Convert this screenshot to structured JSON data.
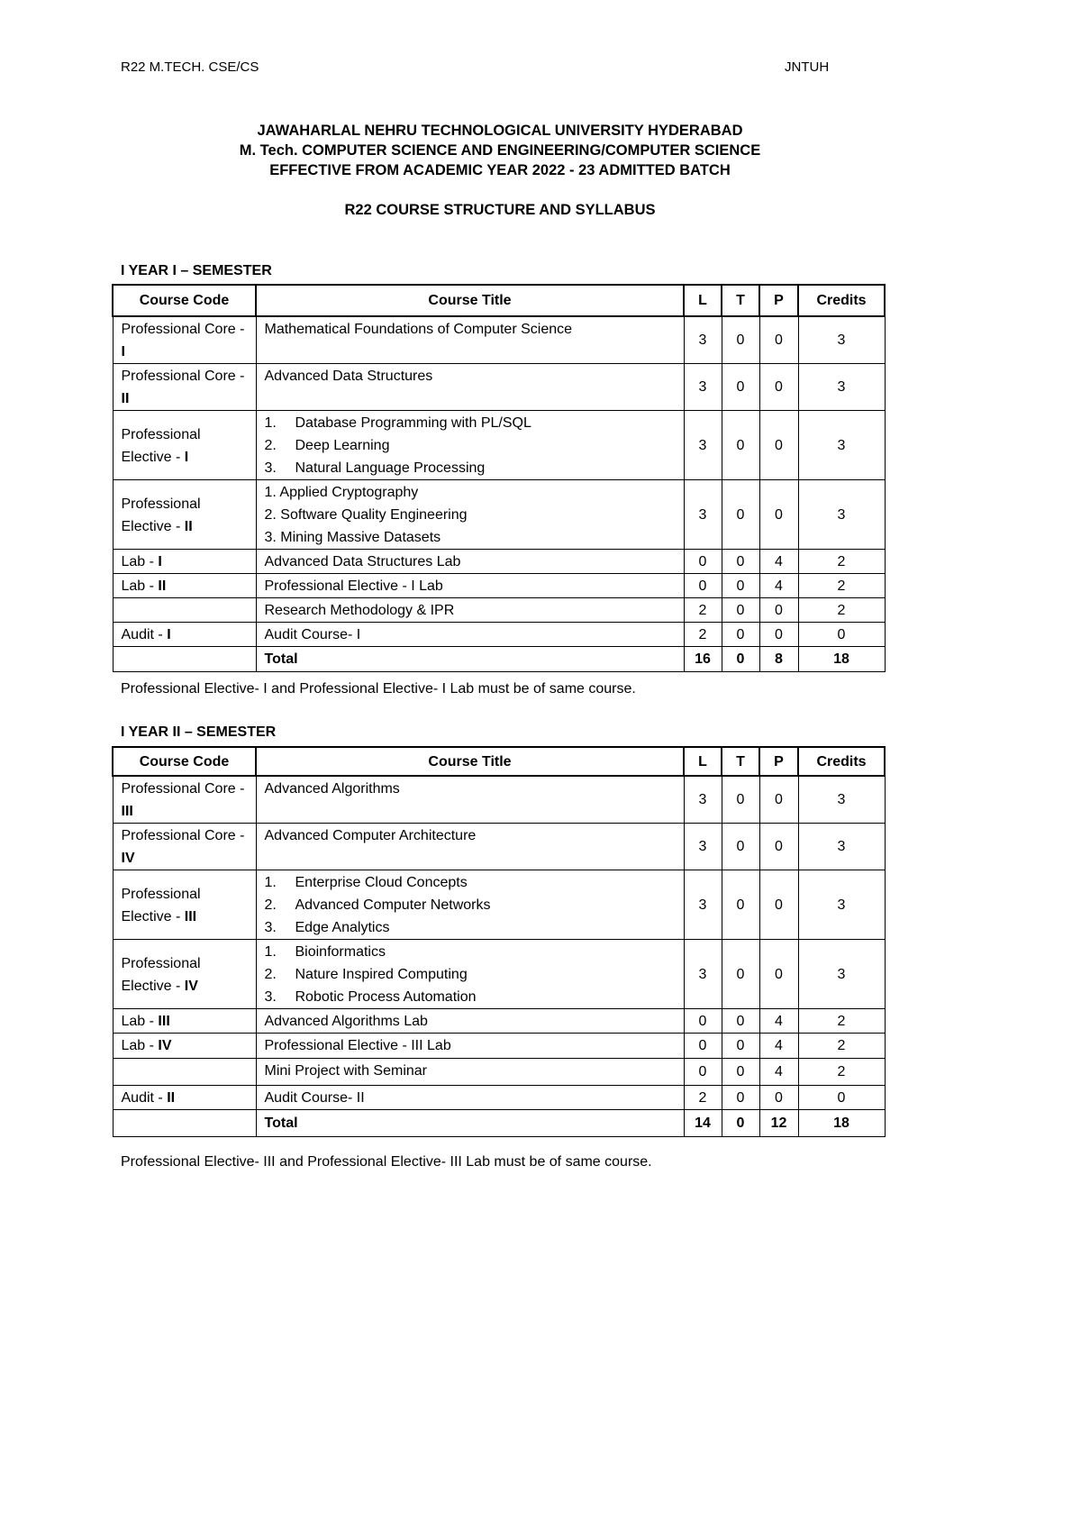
{
  "header": {
    "left": "R22 M.TECH. CSE/CS",
    "right": "JNTUH"
  },
  "titles": [
    "JAWAHARLAL NEHRU TECHNOLOGICAL UNIVERSITY HYDERABAD",
    "M. Tech. COMPUTER SCIENCE AND ENGINEERING/COMPUTER SCIENCE",
    "EFFECTIVE FROM ACADEMIC YEAR 2022 - 23 ADMITTED BATCH",
    "R22 COURSE STRUCTURE AND SYLLABUS"
  ],
  "columns": [
    "Course Code",
    "Course Title",
    "L",
    "T",
    "P",
    "Credits"
  ],
  "semesters": [
    {
      "heading": "I YEAR I – SEMESTER",
      "rows": [
        {
          "code": "Professional Core - ",
          "num": "I",
          "titles": [
            "Mathematical Foundations of Computer Science"
          ],
          "L": "3",
          "T": "0",
          "P": "0",
          "C": "3"
        },
        {
          "code": "Professional Core - ",
          "num": "II",
          "titles": [
            "Advanced Data Structures"
          ],
          "L": "3",
          "T": "0",
          "P": "0",
          "C": "3"
        },
        {
          "code": "Professional Elective - ",
          "num": "I",
          "list": "tab",
          "titles": [
            "Database Programming with PL/SQL",
            "Deep Learning",
            "Natural Language Processing"
          ],
          "L": "3",
          "T": "0",
          "P": "0",
          "C": "3"
        },
        {
          "code": "Professional Elective - ",
          "num": "II",
          "list": "inline",
          "titles": [
            "Applied Cryptography",
            "Software Quality Engineering",
            "Mining Massive Datasets"
          ],
          "L": "3",
          "T": "0",
          "P": "0",
          "C": "3"
        },
        {
          "code": "Lab - ",
          "num": "I",
          "titles": [
            "Advanced Data Structures Lab"
          ],
          "L": "0",
          "T": "0",
          "P": "4",
          "C": "2"
        },
        {
          "code": "Lab - ",
          "num": "II",
          "titles": [
            "Professional Elective - I Lab"
          ],
          "L": "0",
          "T": "0",
          "P": "4",
          "C": "2"
        },
        {
          "code": "",
          "num": "",
          "titles": [
            "Research Methodology & IPR"
          ],
          "L": "2",
          "T": "0",
          "P": "0",
          "C": "2"
        },
        {
          "code": "Audit - ",
          "num": "I",
          "titles": [
            "Audit Course- I"
          ],
          "L": "2",
          "T": "0",
          "P": "0",
          "C": "0"
        }
      ],
      "total": {
        "label": "Total",
        "L": "16",
        "T": "0",
        "P": "8",
        "C": "18"
      },
      "note": "Professional Elective- I and Professional Elective- I Lab must be of same course."
    },
    {
      "heading": "I YEAR II – SEMESTER",
      "rows": [
        {
          "code": "Professional Core - ",
          "num": "III",
          "titles": [
            "Advanced Algorithms"
          ],
          "L": "3",
          "T": "0",
          "P": "0",
          "C": "3"
        },
        {
          "code": "Professional Core - ",
          "num": "IV",
          "titles": [
            "Advanced Computer Architecture"
          ],
          "L": "3",
          "T": "0",
          "P": "0",
          "C": "3"
        },
        {
          "code": "Professional Elective - ",
          "num": "III",
          "list": "tab",
          "titles": [
            "Enterprise Cloud Concepts",
            "Advanced Computer Networks",
            "Edge Analytics"
          ],
          "L": "3",
          "T": "0",
          "P": "0",
          "C": "3"
        },
        {
          "code": "Professional Elective - ",
          "num": "IV",
          "list": "tab",
          "titles": [
            "Bioinformatics",
            "Nature Inspired Computing",
            "Robotic Process Automation"
          ],
          "L": "3",
          "T": "0",
          "P": "0",
          "C": "3"
        },
        {
          "code": "Lab - ",
          "num": "III",
          "titles": [
            "Advanced Algorithms Lab"
          ],
          "L": "0",
          "T": "0",
          "P": "4",
          "C": "2"
        },
        {
          "code": "Lab - ",
          "num": "IV",
          "titles": [
            "Professional Elective - III Lab"
          ],
          "L": "0",
          "T": "0",
          "P": "4",
          "C": "2"
        },
        {
          "code": "",
          "num": "",
          "titles": [
            "Mini Project with Seminar"
          ],
          "L": "0",
          "T": "0",
          "P": "4",
          "C": "2"
        },
        {
          "code": "Audit - ",
          "num": "II",
          "titles": [
            "Audit Course- II"
          ],
          "L": "2",
          "T": "0",
          "P": "0",
          "C": "0"
        }
      ],
      "total": {
        "label": "Total",
        "L": "14",
        "T": "0",
        "P": "12",
        "C": "18"
      },
      "note": "Professional Elective- III and Professional Elective- III Lab must be of same course."
    }
  ]
}
